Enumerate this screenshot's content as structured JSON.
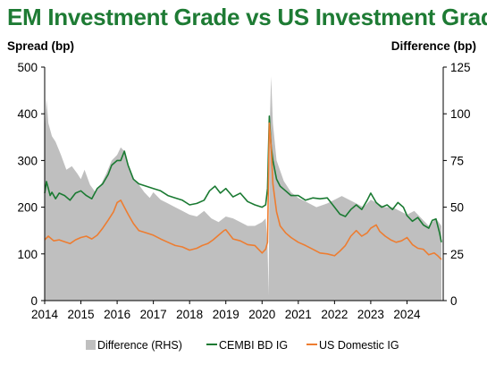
{
  "chart_data": {
    "type": "area+line",
    "title": "EM Investment Grade vs US Investment Grade",
    "ylabel_left": "Spread (bp)",
    "ylabel_right": "Difference (bp)",
    "ylim_left": [
      0,
      500
    ],
    "ylim_right": [
      0,
      125
    ],
    "yticks_left": [
      "0",
      "100",
      "200",
      "300",
      "400",
      "500"
    ],
    "yticks_right": [
      "0",
      "25",
      "50",
      "75",
      "100",
      "125"
    ],
    "x_range": [
      2014.0,
      2025.0
    ],
    "xticks": [
      "2014",
      "2015",
      "2016",
      "2017",
      "2018",
      "2019",
      "2020",
      "2021",
      "2022",
      "2023",
      "2024"
    ],
    "grid": false,
    "legend_position": "bottom",
    "colors": {
      "title": "#1e7b34",
      "difference": "#bfbfbf",
      "cembi": "#1a7a32",
      "us": "#ed7d31"
    },
    "series": [
      {
        "name": "Difference (RHS)",
        "axis": "right",
        "style": "area",
        "x": [
          2014.0,
          2014.05,
          2014.1,
          2014.2,
          2014.3,
          2014.45,
          2014.6,
          2014.75,
          2014.9,
          2015.0,
          2015.1,
          2015.25,
          2015.4,
          2015.55,
          2015.7,
          2015.85,
          2016.0,
          2016.1,
          2016.2,
          2016.3,
          2016.45,
          2016.6,
          2016.75,
          2016.9,
          2017.0,
          2017.2,
          2017.4,
          2017.6,
          2017.8,
          2018.0,
          2018.2,
          2018.4,
          2018.6,
          2018.8,
          2019.0,
          2019.2,
          2019.4,
          2019.6,
          2019.8,
          2020.0,
          2020.1,
          2020.15,
          2020.18,
          2020.2,
          2020.22,
          2020.25,
          2020.3,
          2020.4,
          2020.6,
          2020.8,
          2021.0,
          2021.2,
          2021.5,
          2021.8,
          2022.0,
          2022.2,
          2022.4,
          2022.6,
          2022.8,
          2023.0,
          2023.2,
          2023.4,
          2023.6,
          2023.8,
          2024.0,
          2024.2,
          2024.4,
          2024.6,
          2024.8,
          2024.95
        ],
        "values": [
          90,
          108,
          95,
          88,
          85,
          78,
          70,
          72,
          68,
          65,
          70,
          62,
          58,
          62,
          68,
          75,
          78,
          82,
          80,
          72,
          65,
          62,
          58,
          55,
          58,
          54,
          52,
          50,
          48,
          46,
          45,
          48,
          44,
          42,
          45,
          44,
          42,
          40,
          40,
          42,
          44,
          30,
          3,
          60,
          100,
          120,
          95,
          75,
          64,
          58,
          55,
          53,
          50,
          52,
          54,
          56,
          54,
          52,
          50,
          54,
          52,
          50,
          50,
          48,
          46,
          48,
          44,
          40,
          44,
          40
        ]
      },
      {
        "name": "CEMBI BD IG",
        "axis": "left",
        "style": "line",
        "x": [
          2014.0,
          2014.05,
          2014.1,
          2014.15,
          2014.2,
          2014.3,
          2014.4,
          2014.55,
          2014.7,
          2014.85,
          2015.0,
          2015.15,
          2015.3,
          2015.45,
          2015.6,
          2015.75,
          2015.85,
          2016.0,
          2016.1,
          2016.2,
          2016.3,
          2016.45,
          2016.6,
          2016.8,
          2017.0,
          2017.2,
          2017.4,
          2017.6,
          2017.8,
          2018.0,
          2018.2,
          2018.4,
          2018.55,
          2018.7,
          2018.85,
          2019.0,
          2019.2,
          2019.4,
          2019.6,
          2019.8,
          2020.0,
          2020.1,
          2020.15,
          2020.2,
          2020.25,
          2020.3,
          2020.4,
          2020.5,
          2020.65,
          2020.8,
          2021.0,
          2021.2,
          2021.4,
          2021.6,
          2021.8,
          2022.0,
          2022.15,
          2022.3,
          2022.45,
          2022.6,
          2022.75,
          2022.9,
          2023.0,
          2023.15,
          2023.3,
          2023.45,
          2023.6,
          2023.75,
          2023.9,
          2024.0,
          2024.15,
          2024.3,
          2024.45,
          2024.6,
          2024.7,
          2024.8,
          2024.9,
          2024.95
        ],
        "values": [
          230,
          255,
          240,
          225,
          232,
          218,
          230,
          225,
          215,
          230,
          235,
          225,
          218,
          240,
          250,
          270,
          290,
          300,
          300,
          320,
          290,
          260,
          250,
          245,
          240,
          235,
          225,
          220,
          215,
          205,
          208,
          215,
          235,
          245,
          230,
          240,
          222,
          230,
          212,
          205,
          200,
          205,
          240,
          395,
          330,
          300,
          260,
          245,
          235,
          225,
          225,
          215,
          220,
          218,
          220,
          200,
          185,
          180,
          195,
          205,
          195,
          215,
          230,
          210,
          200,
          205,
          195,
          210,
          200,
          182,
          170,
          178,
          162,
          155,
          172,
          175,
          145,
          125
        ]
      },
      {
        "name": "US Domestic IG",
        "axis": "left",
        "style": "line",
        "x": [
          2014.0,
          2014.1,
          2014.25,
          2014.4,
          2014.55,
          2014.7,
          2014.85,
          2015.0,
          2015.15,
          2015.3,
          2015.45,
          2015.6,
          2015.75,
          2015.9,
          2016.0,
          2016.1,
          2016.2,
          2016.3,
          2016.45,
          2016.6,
          2016.8,
          2017.0,
          2017.2,
          2017.4,
          2017.6,
          2017.8,
          2018.0,
          2018.2,
          2018.35,
          2018.5,
          2018.65,
          2018.8,
          2018.95,
          2019.0,
          2019.2,
          2019.4,
          2019.6,
          2019.8,
          2020.0,
          2020.1,
          2020.15,
          2020.2,
          2020.25,
          2020.3,
          2020.4,
          2020.5,
          2020.65,
          2020.8,
          2021.0,
          2021.2,
          2021.4,
          2021.6,
          2021.8,
          2022.0,
          2022.15,
          2022.3,
          2022.45,
          2022.6,
          2022.75,
          2022.9,
          2023.0,
          2023.15,
          2023.25,
          2023.4,
          2023.55,
          2023.7,
          2023.85,
          2024.0,
          2024.15,
          2024.3,
          2024.45,
          2024.6,
          2024.75,
          2024.85,
          2024.95
        ],
        "values": [
          130,
          138,
          128,
          130,
          126,
          122,
          130,
          135,
          138,
          132,
          140,
          155,
          172,
          190,
          210,
          215,
          200,
          185,
          165,
          150,
          145,
          140,
          132,
          125,
          118,
          115,
          108,
          112,
          118,
          122,
          130,
          140,
          150,
          152,
          132,
          128,
          120,
          118,
          102,
          110,
          125,
          380,
          330,
          250,
          190,
          160,
          145,
          135,
          125,
          118,
          110,
          102,
          100,
          96,
          106,
          118,
          138,
          150,
          138,
          145,
          155,
          162,
          148,
          138,
          130,
          125,
          128,
          135,
          120,
          112,
          110,
          98,
          102,
          96,
          88
        ]
      }
    ]
  },
  "legend": {
    "difference": "Difference (RHS)",
    "cembi": "CEMBI BD IG",
    "us": "US Domestic IG"
  }
}
